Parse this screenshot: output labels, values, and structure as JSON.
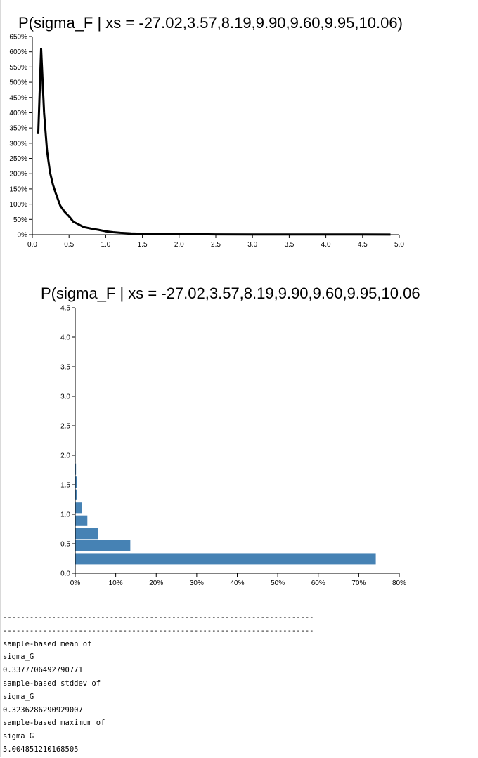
{
  "charts_text": {
    "title1": "P(sigma_F | xs = -27.02,3.57,8.19,9.90,9.60,9.95,10.06)",
    "title2": "P(sigma_F | xs = -27.02,3.57,8.19,9.90,9.60,9.95,10.06)"
  },
  "chart_data": [
    {
      "type": "line",
      "title": "P(sigma_F | xs = -27.02,3.57,8.19,9.90,9.60,9.95,10.06)",
      "xlim": [
        0,
        5
      ],
      "ylim": [
        0,
        650
      ],
      "x_ticks": [
        "0.0",
        "0.5",
        "1.0",
        "1.5",
        "2.0",
        "2.5",
        "3.0",
        "3.5",
        "4.0",
        "4.5",
        "5.0"
      ],
      "y_ticks": [
        "0%",
        "50%",
        "100%",
        "150%",
        "200%",
        "250%",
        "300%",
        "350%",
        "400%",
        "450%",
        "500%",
        "550%",
        "600%",
        "650%"
      ],
      "y_unit": "%",
      "color": "#000000",
      "x": [
        0.08,
        0.12,
        0.16,
        0.2,
        0.24,
        0.28,
        0.32,
        0.38,
        0.44,
        0.5,
        0.56,
        0.62,
        0.7,
        0.8,
        0.9,
        1.0,
        1.1,
        1.2,
        1.35,
        1.5,
        1.7,
        1.9,
        2.2,
        2.5,
        3.0,
        3.5,
        4.0,
        4.5,
        4.88
      ],
      "y": [
        330,
        610,
        400,
        275,
        205,
        165,
        135,
        95,
        75,
        60,
        42,
        35,
        25,
        20,
        16,
        11,
        8,
        6,
        4,
        3,
        2.5,
        2,
        1.5,
        1,
        0.8,
        0.6,
        0.5,
        0.4,
        0.3
      ]
    },
    {
      "type": "bar",
      "orientation": "horizontal",
      "title": "P(sigma_F | xs = -27.02,3.57,8.19,9.90,9.60,9.95,10.06)",
      "xlim": [
        0,
        80
      ],
      "ylim": [
        0,
        4.5
      ],
      "x_ticks": [
        "0%",
        "10%",
        "20%",
        "30%",
        "40%",
        "50%",
        "60%",
        "70%",
        "80%"
      ],
      "y_ticks": [
        "0.0",
        "0.5",
        "1.0",
        "1.5",
        "2.0",
        "2.5",
        "3.0",
        "3.5",
        "4.0",
        "4.5"
      ],
      "color": "#4682b4",
      "bins": [
        {
          "y0": 0.15,
          "y1": 0.34,
          "value": 74.2
        },
        {
          "y0": 0.37,
          "y1": 0.56,
          "value": 13.6
        },
        {
          "y0": 0.58,
          "y1": 0.77,
          "value": 5.7
        },
        {
          "y0": 0.8,
          "y1": 0.98,
          "value": 3.0
        },
        {
          "y0": 1.02,
          "y1": 1.2,
          "value": 1.7
        },
        {
          "y0": 1.24,
          "y1": 1.42,
          "value": 0.5
        },
        {
          "y0": 1.45,
          "y1": 1.64,
          "value": 0.4
        },
        {
          "y0": 1.67,
          "y1": 1.86,
          "value": 0.2
        },
        {
          "y0": 1.89,
          "y1": 2.07,
          "value": 0.1
        }
      ]
    }
  ],
  "stats": {
    "divider1": "----------------------------------------------------------------------",
    "divider2": "----------------------------------------------------------------------",
    "mean_label": "sample-based mean of",
    "mean_var": "sigma_G",
    "mean_value": "0.3377706492790771",
    "stddev_label": "sample-based stddev of",
    "stddev_var": "sigma_G",
    "stddev_value": "0.3236286290929007",
    "max_label": "sample-based maximum of",
    "max_var": "sigma_G",
    "max_value": "5.004851210168505"
  }
}
